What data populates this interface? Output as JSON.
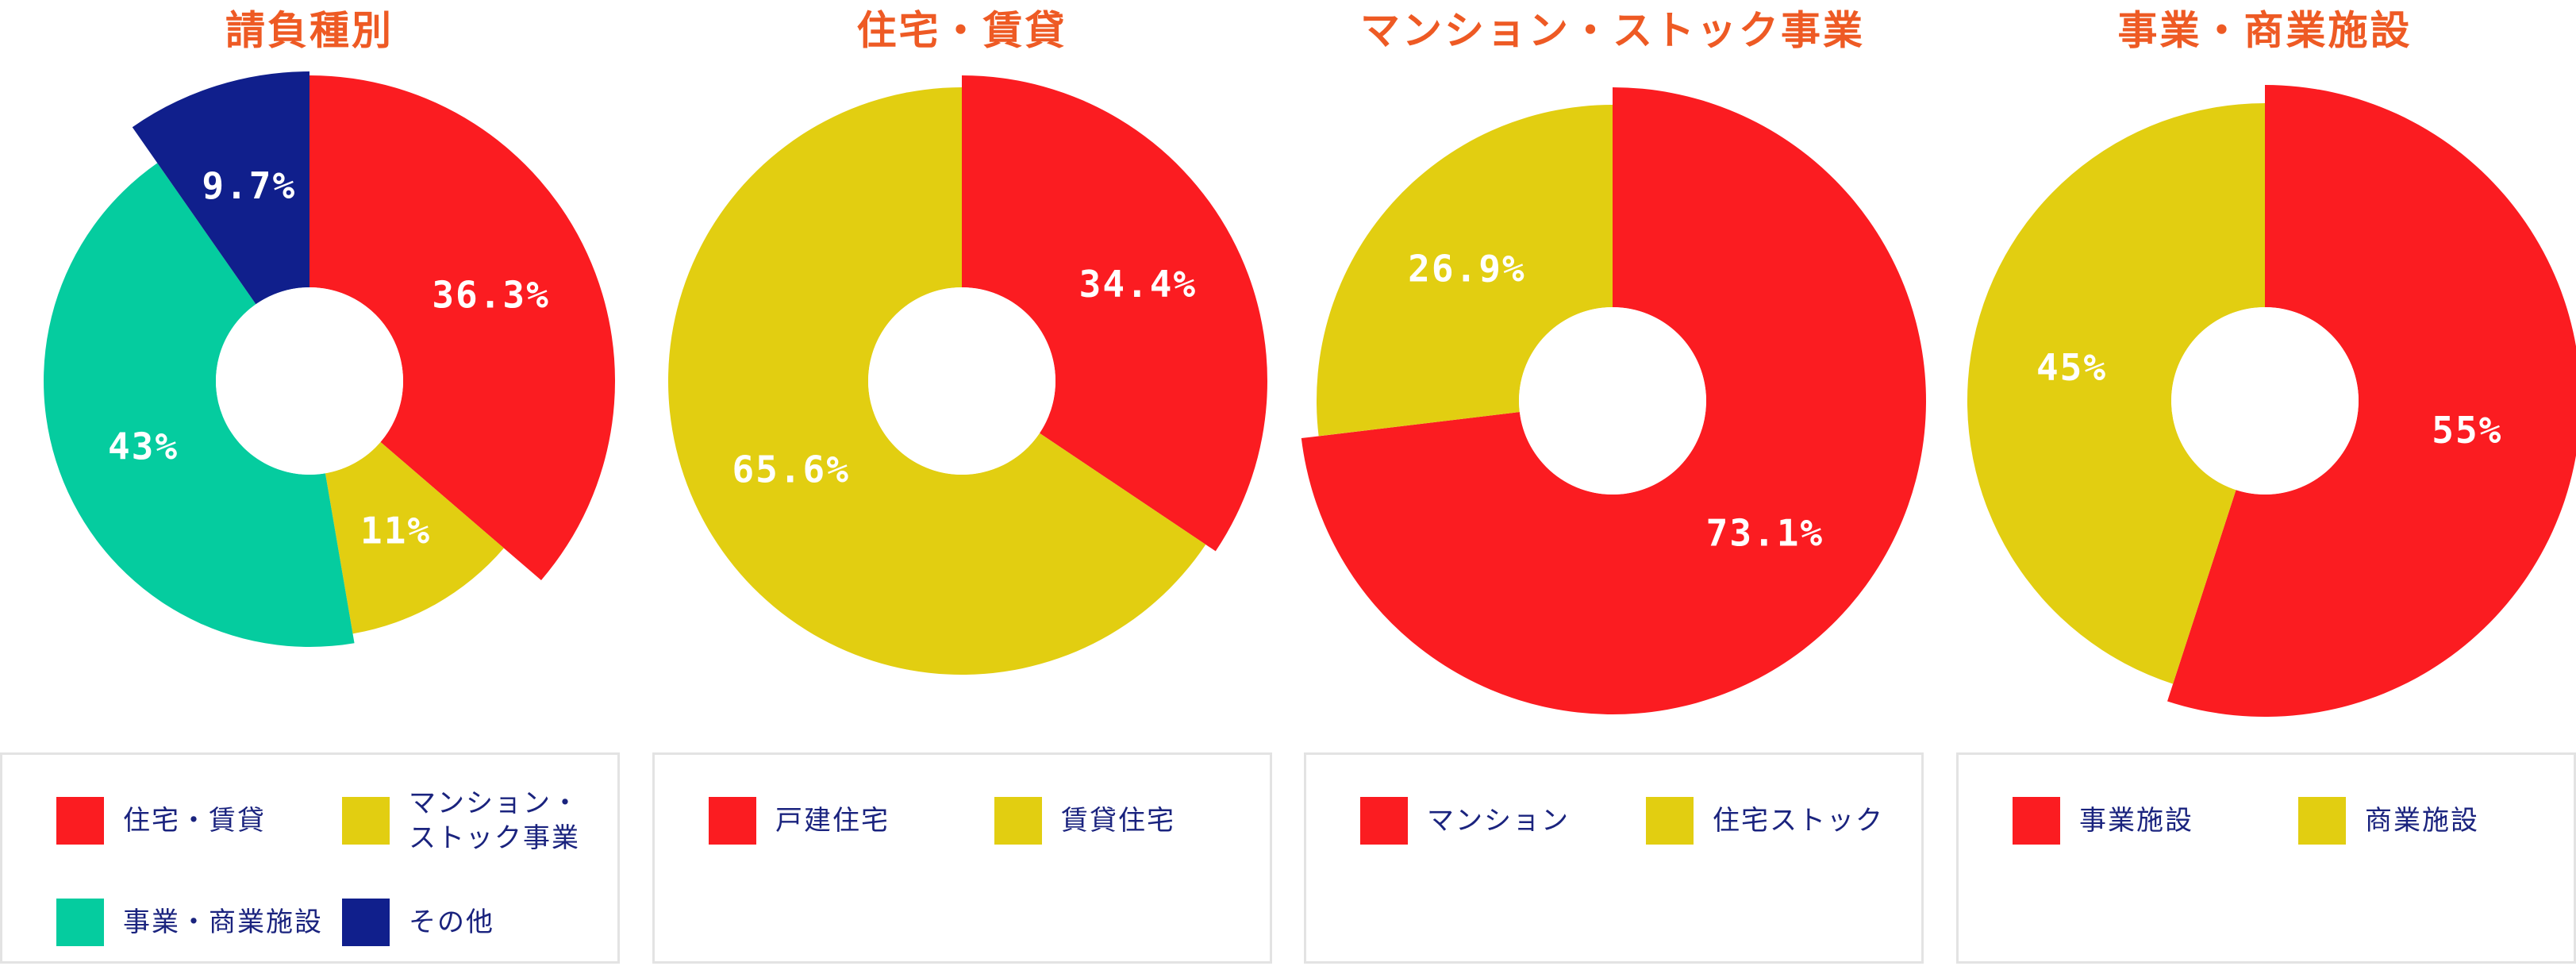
{
  "colors": {
    "title": "#ee5a24",
    "red": "#fb1c21",
    "yellow": "#e2ce11",
    "teal": "#05cc9f",
    "navy": "#101f8c",
    "legend_text": "#1a237e",
    "legend_border": "#e3e3e3"
  },
  "chart_data": [
    {
      "type": "pie",
      "title": "請負種別",
      "slices": [
        {
          "name": "住宅・賃貸",
          "value": 36.3,
          "label": "36.3%",
          "color": "#fb1c21"
        },
        {
          "name": "マンション・ストック事業",
          "value": 11,
          "label": "11%",
          "color": "#e2ce11"
        },
        {
          "name": "事業・商業施設",
          "value": 43,
          "label": "43%",
          "color": "#05cc9f"
        },
        {
          "name": "その他",
          "value": 9.7,
          "label": "9.7%",
          "color": "#101f8c"
        }
      ],
      "legend": [
        {
          "label": "住宅・賃貸",
          "color": "#fb1c21"
        },
        {
          "label": "マンション・\nストック事業",
          "color": "#e2ce11"
        },
        {
          "label": "事業・商業施設",
          "color": "#05cc9f"
        },
        {
          "label": "その他",
          "color": "#101f8c"
        }
      ]
    },
    {
      "type": "pie",
      "title": "住宅・賃貸",
      "slices": [
        {
          "name": "戸建住宅",
          "value": 34.4,
          "label": "34.4%",
          "color": "#fb1c21"
        },
        {
          "name": "賃貸住宅",
          "value": 65.6,
          "label": "65.6%",
          "color": "#e2ce11"
        }
      ],
      "legend": [
        {
          "label": "戸建住宅",
          "color": "#fb1c21"
        },
        {
          "label": "賃貸住宅",
          "color": "#e2ce11"
        }
      ]
    },
    {
      "type": "pie",
      "title": "マンション・ストック事業",
      "slices": [
        {
          "name": "マンション",
          "value": 73.1,
          "label": "73.1%",
          "color": "#fb1c21"
        },
        {
          "name": "住宅ストック",
          "value": 26.9,
          "label": "26.9%",
          "color": "#e2ce11"
        }
      ],
      "legend": [
        {
          "label": "マンション",
          "color": "#fb1c21"
        },
        {
          "label": "住宅ストック",
          "color": "#e2ce11"
        }
      ]
    },
    {
      "type": "pie",
      "title": "事業・商業施設",
      "slices": [
        {
          "name": "事業施設",
          "value": 55,
          "label": "55%",
          "color": "#fb1c21"
        },
        {
          "name": "商業施設",
          "value": 45,
          "label": "45%",
          "color": "#e2ce11"
        }
      ],
      "legend": [
        {
          "label": "事業施設",
          "color": "#fb1c21"
        },
        {
          "label": "商業施設",
          "color": "#e2ce11"
        }
      ]
    }
  ]
}
